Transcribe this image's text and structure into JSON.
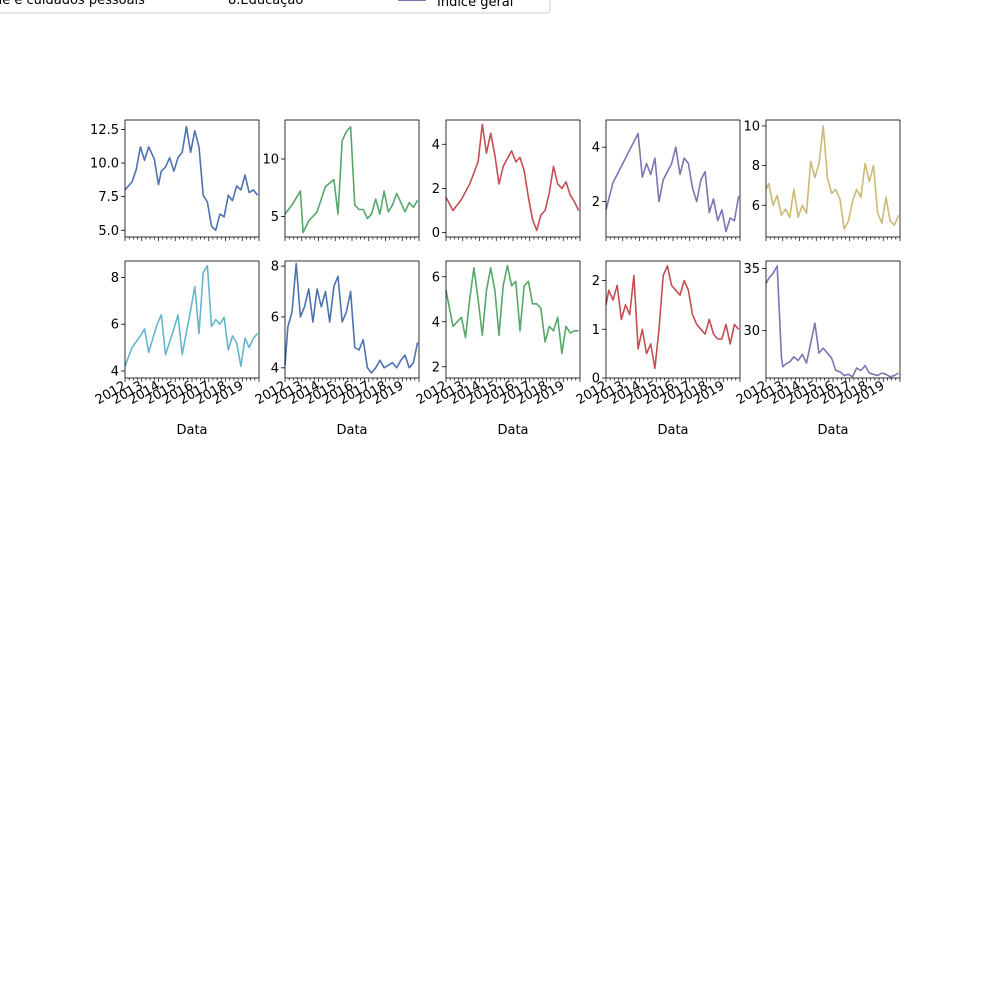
{
  "legend": {
    "entries": [
      {
        "label": "de e cuidados pessoais",
        "color": "#4c72b0"
      },
      {
        "label": "8.Educação",
        "color": "#55a868"
      },
      {
        "label": "Índice geral",
        "color": "#8172b2"
      }
    ]
  },
  "chart_data": [
    {
      "type": "line",
      "color": "#4c72b0",
      "ylim": [
        4.5,
        13.2
      ],
      "yticks": [
        5.0,
        7.5,
        10.0,
        12.5
      ],
      "ytick_labels": [
        "5.0",
        "7.5",
        "10.0",
        "12.5"
      ],
      "xlabel": "",
      "series": [
        {
          "x": [
            "2012-01",
            "2012-06",
            "2012-09",
            "2012-12",
            "2013-03",
            "2013-06",
            "2013-10",
            "2014-01",
            "2014-03",
            "2014-06",
            "2014-09",
            "2014-12",
            "2015-03",
            "2015-06",
            "2015-09",
            "2015-12",
            "2016-03",
            "2016-06",
            "2016-09",
            "2016-12",
            "2017-03",
            "2017-06",
            "2017-09",
            "2017-12",
            "2018-03",
            "2018-06",
            "2018-09",
            "2018-12",
            "2019-03",
            "2019-06",
            "2019-09",
            "2019-12"
          ],
          "values": [
            8.0,
            8.6,
            9.5,
            11.2,
            10.2,
            11.2,
            10.3,
            8.4,
            9.4,
            9.7,
            10.4,
            9.4,
            10.4,
            10.8,
            12.7,
            10.8,
            12.4,
            11.2,
            7.6,
            7.1,
            5.3,
            5.0,
            6.2,
            6.0,
            7.6,
            7.2,
            8.3,
            8.0,
            9.1,
            7.8,
            8.0,
            7.6
          ]
        }
      ]
    },
    {
      "type": "line",
      "color": "#55a868",
      "ylim": [
        3.2,
        13.4
      ],
      "yticks": [
        5,
        10
      ],
      "ytick_labels": [
        "5",
        "10"
      ],
      "xlabel": "",
      "series": [
        {
          "x": [
            "2012-01",
            "2012-06",
            "2012-12",
            "2013-02",
            "2013-06",
            "2013-12",
            "2014-06",
            "2014-12",
            "2015-03",
            "2015-06",
            "2015-09",
            "2015-12",
            "2016-03",
            "2016-06",
            "2016-09",
            "2016-12",
            "2017-03",
            "2017-06",
            "2017-09",
            "2017-12",
            "2018-03",
            "2018-06",
            "2018-09",
            "2018-12",
            "2019-03",
            "2019-06",
            "2019-09",
            "2019-12"
          ],
          "values": [
            5.2,
            6.0,
            7.2,
            3.6,
            4.6,
            5.4,
            7.6,
            8.2,
            5.2,
            11.6,
            12.4,
            12.8,
            6.0,
            5.6,
            5.6,
            4.8,
            5.2,
            6.5,
            5.2,
            7.2,
            5.4,
            6.0,
            7.0,
            6.2,
            5.4,
            6.2,
            5.8,
            6.4
          ]
        }
      ]
    },
    {
      "type": "line",
      "color": "#c44e52",
      "ylim": [
        -0.2,
        5.1
      ],
      "yticks": [
        0,
        2,
        4
      ],
      "ytick_labels": [
        "0",
        "2",
        "4"
      ],
      "xlabel": "",
      "series": [
        {
          "x": [
            "2012-01",
            "2012-06",
            "2012-12",
            "2013-06",
            "2013-12",
            "2014-03",
            "2014-06",
            "2014-09",
            "2014-12",
            "2015-03",
            "2015-06",
            "2015-12",
            "2016-03",
            "2016-06",
            "2016-09",
            "2016-12",
            "2017-03",
            "2017-06",
            "2017-09",
            "2017-12",
            "2018-03",
            "2018-06",
            "2018-09",
            "2018-12",
            "2019-03",
            "2019-06",
            "2019-09",
            "2019-12"
          ],
          "values": [
            1.6,
            1.0,
            1.5,
            2.2,
            3.2,
            4.9,
            3.6,
            4.5,
            3.5,
            2.2,
            3.0,
            3.7,
            3.2,
            3.4,
            2.8,
            1.6,
            0.6,
            0.1,
            0.8,
            1.0,
            1.8,
            3.0,
            2.2,
            2.0,
            2.3,
            1.7,
            1.4,
            1.0
          ]
        }
      ]
    },
    {
      "type": "line",
      "color": "#8172b2",
      "ylim": [
        0.7,
        5.0
      ],
      "yticks": [
        2,
        4
      ],
      "ytick_labels": [
        "2",
        "4"
      ],
      "xlabel": "",
      "series": [
        {
          "x": [
            "2012-01",
            "2012-06",
            "2012-12",
            "2013-06",
            "2013-12",
            "2014-03",
            "2014-06",
            "2014-09",
            "2014-12",
            "2015-03",
            "2015-06",
            "2015-12",
            "2016-03",
            "2016-06",
            "2016-09",
            "2016-12",
            "2017-03",
            "2017-06",
            "2017-09",
            "2017-12",
            "2018-03",
            "2018-06",
            "2018-09",
            "2018-12",
            "2019-03",
            "2019-06",
            "2019-09",
            "2019-12"
          ],
          "values": [
            1.7,
            2.7,
            3.3,
            3.9,
            4.5,
            2.9,
            3.4,
            3.0,
            3.6,
            2.0,
            2.8,
            3.4,
            4.0,
            3.0,
            3.6,
            3.4,
            2.5,
            2.0,
            2.8,
            3.1,
            1.6,
            2.1,
            1.3,
            1.7,
            0.9,
            1.4,
            1.3,
            2.2
          ]
        }
      ]
    },
    {
      "type": "line",
      "color": "#ccb974",
      "ylim": [
        4.4,
        10.3
      ],
      "yticks": [
        6,
        8,
        10
      ],
      "ytick_labels": [
        "6",
        "8",
        "10"
      ],
      "xlabel": "",
      "series": [
        {
          "x": [
            "2012-01",
            "2012-03",
            "2012-06",
            "2012-09",
            "2012-12",
            "2013-03",
            "2013-06",
            "2013-09",
            "2013-12",
            "2014-03",
            "2014-06",
            "2014-09",
            "2014-12",
            "2015-03",
            "2015-06",
            "2015-09",
            "2015-12",
            "2016-03",
            "2016-06",
            "2016-09",
            "2016-12",
            "2017-03",
            "2017-06",
            "2017-09",
            "2017-12",
            "2018-03",
            "2018-06",
            "2018-09",
            "2018-12",
            "2019-03",
            "2019-06",
            "2019-09",
            "2019-12"
          ],
          "values": [
            6.8,
            7.1,
            6.0,
            6.5,
            5.5,
            5.8,
            5.4,
            6.8,
            5.4,
            6.0,
            5.6,
            8.2,
            7.4,
            8.1,
            10.0,
            7.4,
            6.6,
            6.8,
            6.3,
            4.8,
            5.2,
            6.2,
            6.8,
            6.4,
            8.1,
            7.2,
            8.0,
            5.6,
            5.1,
            6.4,
            5.2,
            5.0,
            5.5
          ]
        }
      ]
    },
    {
      "type": "line",
      "color": "#64b5cd",
      "ylim": [
        3.7,
        8.7
      ],
      "yticks": [
        4,
        6,
        8
      ],
      "ytick_labels": [
        "4",
        "6",
        "8"
      ],
      "xlabel": "Data",
      "series": [
        {
          "x": [
            "2012-01",
            "2012-06",
            "2012-12",
            "2013-03",
            "2013-06",
            "2013-12",
            "2014-03",
            "2014-06",
            "2014-12",
            "2015-03",
            "2015-06",
            "2015-12",
            "2016-03",
            "2016-06",
            "2016-09",
            "2016-12",
            "2017-03",
            "2017-06",
            "2017-09",
            "2017-12",
            "2018-03",
            "2018-06",
            "2018-09",
            "2018-12",
            "2019-03",
            "2019-06",
            "2019-09",
            "2019-12"
          ],
          "values": [
            4.2,
            5.0,
            5.5,
            5.8,
            4.8,
            6.0,
            6.4,
            4.7,
            5.8,
            6.4,
            4.7,
            6.6,
            7.6,
            5.6,
            8.2,
            8.5,
            5.9,
            6.2,
            6.0,
            6.3,
            4.9,
            5.5,
            5.2,
            4.2,
            5.4,
            5.0,
            5.4,
            5.6
          ]
        }
      ]
    },
    {
      "type": "line",
      "color": "#4c72b0",
      "ylim": [
        3.6,
        8.2
      ],
      "yticks": [
        4,
        6,
        8
      ],
      "ytick_labels": [
        "4",
        "6",
        "8"
      ],
      "xlabel": "Data",
      "series": [
        {
          "x": [
            "2012-01",
            "2012-03",
            "2012-06",
            "2012-09",
            "2012-12",
            "2013-03",
            "2013-06",
            "2013-09",
            "2013-12",
            "2014-03",
            "2014-06",
            "2014-09",
            "2014-12",
            "2015-03",
            "2015-06",
            "2015-09",
            "2015-12",
            "2016-03",
            "2016-06",
            "2016-09",
            "2016-12",
            "2017-03",
            "2017-06",
            "2017-09",
            "2017-12",
            "2018-03",
            "2018-06",
            "2018-09",
            "2018-12",
            "2019-03",
            "2019-06",
            "2019-09",
            "2019-12"
          ],
          "values": [
            4.1,
            5.6,
            6.2,
            8.1,
            6.0,
            6.4,
            7.1,
            5.8,
            7.1,
            6.4,
            7.0,
            5.8,
            7.2,
            7.6,
            5.8,
            6.2,
            7.0,
            4.8,
            4.7,
            5.1,
            4.0,
            3.8,
            4.0,
            4.3,
            4.0,
            4.1,
            4.2,
            4.0,
            4.3,
            4.5,
            4.0,
            4.2,
            5.0
          ]
        }
      ]
    },
    {
      "type": "line",
      "color": "#55a868",
      "ylim": [
        1.5,
        6.7
      ],
      "yticks": [
        2,
        4,
        6
      ],
      "ytick_labels": [
        "2",
        "4",
        "6"
      ],
      "xlabel": "Data",
      "series": [
        {
          "x": [
            "2012-01",
            "2012-06",
            "2012-12",
            "2013-03",
            "2013-06",
            "2013-09",
            "2013-12",
            "2014-03",
            "2014-06",
            "2014-09",
            "2014-12",
            "2015-03",
            "2015-06",
            "2015-09",
            "2015-12",
            "2016-03",
            "2016-06",
            "2016-09",
            "2016-12",
            "2017-03",
            "2017-06",
            "2017-09",
            "2017-12",
            "2018-03",
            "2018-06",
            "2018-09",
            "2018-12",
            "2019-03",
            "2019-06",
            "2019-09",
            "2019-12"
          ],
          "values": [
            5.4,
            3.8,
            4.2,
            3.3,
            5.0,
            6.4,
            5.0,
            3.4,
            5.4,
            6.4,
            5.4,
            3.4,
            5.6,
            6.5,
            5.6,
            5.8,
            3.6,
            5.6,
            5.8,
            4.8,
            4.8,
            4.6,
            3.1,
            3.8,
            3.6,
            4.2,
            2.6,
            3.8,
            3.5,
            3.6,
            3.6
          ]
        }
      ]
    },
    {
      "type": "line",
      "color": "#c44e52",
      "ylim": [
        0,
        2.4
      ],
      "yticks": [
        0,
        1,
        2
      ],
      "ytick_labels": [
        "0",
        "1",
        "2"
      ],
      "xlabel": "Data",
      "series": [
        {
          "x": [
            "2012-01",
            "2012-03",
            "2012-06",
            "2012-09",
            "2012-12",
            "2013-03",
            "2013-06",
            "2013-09",
            "2013-12",
            "2014-03",
            "2014-06",
            "2014-09",
            "2014-12",
            "2015-03",
            "2015-06",
            "2015-09",
            "2015-12",
            "2016-03",
            "2016-06",
            "2016-09",
            "2016-12",
            "2017-03",
            "2017-06",
            "2017-09",
            "2017-12",
            "2018-03",
            "2018-06",
            "2018-09",
            "2018-12",
            "2019-03",
            "2019-06",
            "2019-09",
            "2019-12"
          ],
          "values": [
            1.5,
            1.8,
            1.6,
            1.9,
            1.2,
            1.5,
            1.3,
            2.1,
            0.6,
            1.0,
            0.5,
            0.7,
            0.2,
            1.0,
            2.1,
            2.3,
            1.9,
            1.8,
            1.7,
            2.0,
            1.8,
            1.3,
            1.1,
            1.0,
            0.9,
            1.2,
            0.9,
            0.8,
            0.8,
            1.1,
            0.7,
            1.1,
            1.0
          ]
        }
      ]
    },
    {
      "type": "line",
      "color": "#8172b2",
      "ylim": [
        26.2,
        35.6
      ],
      "yticks": [
        30,
        35
      ],
      "ytick_labels": [
        "30",
        "35"
      ],
      "xlabel": "Data",
      "series": [
        {
          "x": [
            "2012-01",
            "2012-03",
            "2012-06",
            "2012-09",
            "2012-12",
            "2013-01",
            "2013-03",
            "2013-06",
            "2013-09",
            "2013-12",
            "2014-03",
            "2014-06",
            "2014-09",
            "2014-12",
            "2015-03",
            "2015-06",
            "2015-09",
            "2015-12",
            "2016-03",
            "2016-06",
            "2016-09",
            "2016-12",
            "2017-03",
            "2017-06",
            "2017-09",
            "2017-12",
            "2018-03",
            "2018-06",
            "2018-09",
            "2018-12",
            "2019-03",
            "2019-06",
            "2019-09",
            "2019-12"
          ],
          "values": [
            33.8,
            34.2,
            34.6,
            35.2,
            27.9,
            27.1,
            27.3,
            27.5,
            27.9,
            27.6,
            28.1,
            27.4,
            29.0,
            30.6,
            28.2,
            28.6,
            28.2,
            27.8,
            26.8,
            26.7,
            26.4,
            26.5,
            26.3,
            27.0,
            26.8,
            27.2,
            26.6,
            26.5,
            26.4,
            26.6,
            26.5,
            26.3,
            26.4,
            26.6
          ]
        }
      ]
    }
  ],
  "shared_xaxis": {
    "ticks": [
      "2012",
      "2013",
      "2014",
      "2015",
      "2016",
      "2017",
      "2018",
      "2019"
    ],
    "range": [
      "2012-01",
      "2020-01"
    ]
  }
}
